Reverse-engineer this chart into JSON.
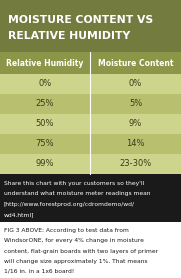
{
  "title_line1": "MOISTURE CONTENT VS",
  "title_line2": "RELATIVE HUMIDITY",
  "title_bg": "#737c3e",
  "title_color": "#ffffff",
  "header_bg": "#8c9648",
  "header_color": "#ffffff",
  "col1_header": "Relative Humidity",
  "col2_header": "Moisture Content",
  "row_bg_even": "#cdd48c",
  "row_bg_odd": "#b8c070",
  "row_text_color": "#3a3a1a",
  "divider_color": "#ffffff",
  "rows": [
    [
      "0%",
      "0%"
    ],
    [
      "25%",
      "5%"
    ],
    [
      "50%",
      "9%"
    ],
    [
      "75%",
      "14%"
    ],
    [
      "99%",
      "23-30%"
    ]
  ],
  "share_bg": "#1a1a1a",
  "share_text_color": "#ffffff",
  "share_line1": "Share this chart with your customers so they'll",
  "share_line2": "understand what moisture meter readings mean",
  "share_line3": "[http://www.forestprod.org/cdromdemo/wd/",
  "share_line4": "wd4.html]",
  "caption_bg": "#ffffff",
  "caption_text_color": "#1a1a1a",
  "caption_line1": "FIG 3 ABOVE: According to test data from",
  "caption_line2": "WindsorONE, for every 4% change in moisture",
  "caption_line3": "content, flat-grain boards with two layers of primer",
  "caption_line4": "will change size approximately 1%. That means",
  "caption_line5": "1/16 in. in a 1x6 board!"
}
